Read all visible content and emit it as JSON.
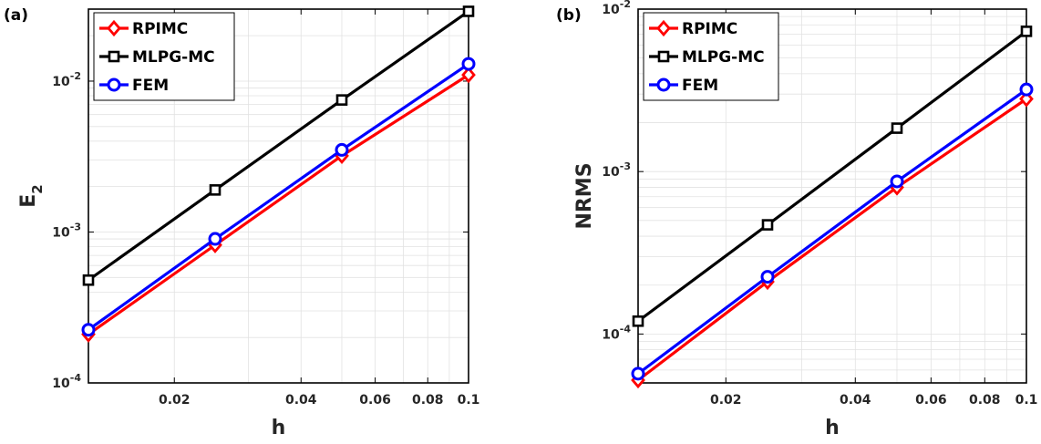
{
  "chart_data": [
    {
      "type": "line",
      "panel_label": "(a)",
      "xlabel": "h",
      "ylabel": "E",
      "ylabel_sub": "2",
      "xscale": "log",
      "yscale": "log",
      "xlim": [
        0.0125,
        0.1
      ],
      "ylim": [
        0.0001,
        0.03
      ],
      "grid": true,
      "legend_position": "top-left",
      "x_ticks": [
        {
          "value": 0.02,
          "label": "0.02"
        },
        {
          "value": 0.04,
          "label": "0.04"
        },
        {
          "value": 0.06,
          "label": "0.06"
        },
        {
          "value": 0.08,
          "label": "0.08"
        },
        {
          "value": 0.1,
          "label": "0.1"
        }
      ],
      "y_ticks": [
        {
          "value": 0.01,
          "base": "10",
          "exp": "-2"
        },
        {
          "value": 0.001,
          "base": "10",
          "exp": "-3"
        },
        {
          "value": 0.0001,
          "base": "10",
          "exp": "-4"
        }
      ],
      "x": [
        0.0125,
        0.025,
        0.05,
        0.1
      ],
      "series": [
        {
          "name": "RPIMC",
          "color": "#ff0000",
          "marker": "diamond",
          "values": [
            0.00021,
            0.00082,
            0.0032,
            0.011
          ]
        },
        {
          "name": "MLPG-MC",
          "color": "#000000",
          "marker": "square",
          "values": [
            0.00048,
            0.0019,
            0.0075,
            0.029
          ]
        },
        {
          "name": "FEM",
          "color": "#0000ff",
          "marker": "circle",
          "values": [
            0.000225,
            0.0009,
            0.0035,
            0.013
          ]
        }
      ]
    },
    {
      "type": "line",
      "panel_label": "(b)",
      "xlabel": "h",
      "ylabel": "NRMS",
      "ylabel_sub": "",
      "xscale": "log",
      "yscale": "log",
      "xlim": [
        0.0125,
        0.1
      ],
      "ylim": [
        5e-05,
        0.01
      ],
      "grid": true,
      "legend_position": "top-left",
      "x_ticks": [
        {
          "value": 0.02,
          "label": "0.02"
        },
        {
          "value": 0.04,
          "label": "0.04"
        },
        {
          "value": 0.06,
          "label": "0.06"
        },
        {
          "value": 0.08,
          "label": "0.08"
        },
        {
          "value": 0.1,
          "label": "0.1"
        }
      ],
      "y_ticks": [
        {
          "value": 0.01,
          "base": "10",
          "exp": "-2"
        },
        {
          "value": 0.001,
          "base": "10",
          "exp": "-3"
        },
        {
          "value": 0.0001,
          "base": "10",
          "exp": "-4"
        }
      ],
      "x": [
        0.0125,
        0.025,
        0.05,
        0.1
      ],
      "series": [
        {
          "name": "RPIMC",
          "color": "#ff0000",
          "marker": "diamond",
          "values": [
            5.2e-05,
            0.00021,
            0.0008,
            0.0028
          ]
        },
        {
          "name": "MLPG-MC",
          "color": "#000000",
          "marker": "square",
          "values": [
            0.00012,
            0.00047,
            0.00185,
            0.0073
          ]
        },
        {
          "name": "FEM",
          "color": "#0000ff",
          "marker": "circle",
          "values": [
            5.7e-05,
            0.000225,
            0.00087,
            0.0032
          ]
        }
      ]
    }
  ]
}
